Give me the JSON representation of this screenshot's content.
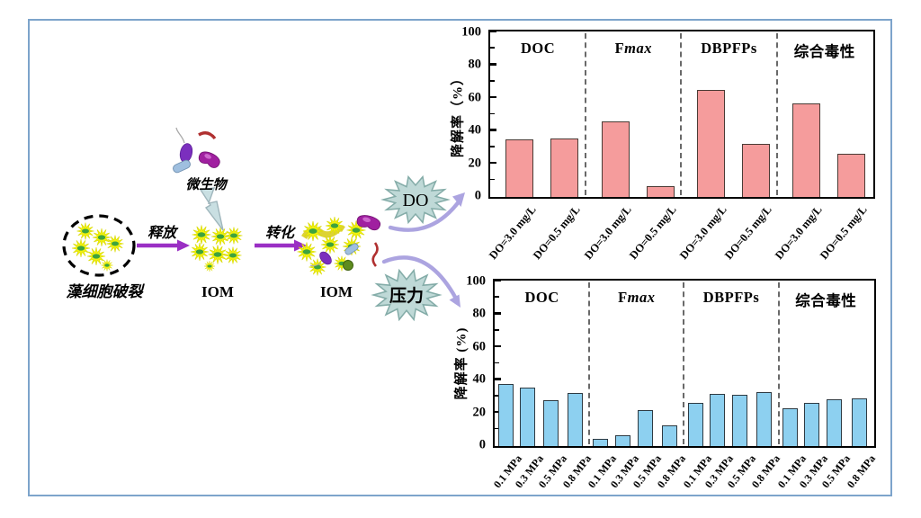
{
  "diagram": {
    "algae_label": "藻细胞破裂",
    "release_label": "释放",
    "iom1_label": "IOM",
    "microbes_label": "微生物",
    "transform_label": "转化",
    "iom2_label": "IOM",
    "do_label": "DO",
    "pressure_label": "压力"
  },
  "colors": {
    "frame_border": "#7DA4CB",
    "purple_arrow": "#9A2FC4",
    "lavender_arrow": "#ACA4E0",
    "burst_fill": "#BFD9D7",
    "burst_stroke": "#84ACA8",
    "star_fill": "#F2F20C",
    "star_center": "#3EA33E",
    "pink_bar": "#F59C9C",
    "blue_bar": "#8DD0F0"
  },
  "chart_data": [
    {
      "type": "bar",
      "title": "",
      "ylabel": "降解率（%）",
      "xlabel": "",
      "ylim": [
        0,
        100
      ],
      "yticks": [
        0,
        20,
        40,
        60,
        80,
        100
      ],
      "minor_tick_step": 10,
      "grid": false,
      "legend": "none",
      "groups": [
        "DOC",
        "Fmax",
        "DBPFPs",
        "综合毒性"
      ],
      "categories": [
        "DO=3.0 mg/L",
        "DO=0.5 mg/L"
      ],
      "series": [
        {
          "group": "DOC",
          "values": [
            35,
            35.5
          ]
        },
        {
          "group": "Fmax",
          "values": [
            46,
            6.5
          ]
        },
        {
          "group": "DBPFPs",
          "values": [
            65,
            32.5
          ]
        },
        {
          "group": "综合毒性",
          "values": [
            57,
            26.5
          ]
        }
      ],
      "bar_fill": "#F59C9C",
      "bar_stroke": "#4A3B35"
    },
    {
      "type": "bar",
      "title": "",
      "ylabel": "降解率 (%)",
      "xlabel": "",
      "ylim": [
        0,
        100
      ],
      "yticks": [
        0,
        20,
        40,
        60,
        80,
        100
      ],
      "minor_tick_step": 10,
      "grid": false,
      "legend": "none",
      "groups": [
        "DOC",
        "Fmax",
        "DBPFPs",
        "综合毒性"
      ],
      "categories": [
        "0.1 MPa",
        "0.3 MPa",
        "0.5 MPa",
        "0.8 MPa"
      ],
      "series": [
        {
          "group": "DOC",
          "values": [
            38,
            35.5,
            28,
            32.5
          ]
        },
        {
          "group": "Fmax",
          "values": [
            4.5,
            6.5,
            22,
            12.5
          ]
        },
        {
          "group": "DBPFPs",
          "values": [
            26,
            32,
            31,
            33
          ]
        },
        {
          "group": "综合毒性",
          "values": [
            23,
            26.5,
            28.5,
            29
          ]
        }
      ],
      "bar_fill": "#8DD0F0",
      "bar_stroke": "#2E3A42"
    }
  ]
}
